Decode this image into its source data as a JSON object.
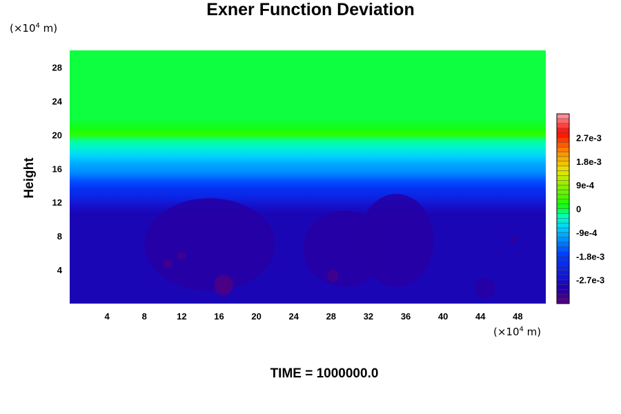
{
  "chart_data": {
    "type": "heatmap",
    "title": "Exner Function Deviation",
    "ylabel": "Height",
    "xunit_prefix": "(×10",
    "xunit_exp": "4",
    "xunit_suffix": " m)",
    "yunit_prefix": "(×10",
    "yunit_exp": "4",
    "yunit_suffix": " m)",
    "footer": "TIME = 1000000.0",
    "xlim": [
      0,
      51
    ],
    "ylim": [
      0,
      30
    ],
    "x_ticks": [
      4,
      8,
      12,
      16,
      20,
      24,
      28,
      32,
      36,
      40,
      44,
      48
    ],
    "y_ticks": [
      4,
      8,
      12,
      16,
      20,
      24,
      28
    ],
    "colorbar": {
      "range": [
        -0.0036,
        0.0036
      ],
      "tick_values": [
        0.0027,
        0.0018,
        0.0009,
        0,
        -0.0009,
        -0.0018,
        -0.0027
      ],
      "tick_labels": [
        "2.7e-3",
        "1.8e-3",
        "9e-4",
        "0",
        "-9e-4",
        "-1.8e-3",
        "-2.7e-3"
      ]
    },
    "vertical_profile": {
      "height": [
        0,
        10.6,
        11.5,
        12.5,
        13.5,
        14.5,
        15.5,
        16.5,
        17.5,
        18.5,
        19.3,
        20.0,
        20.8,
        21.8,
        23,
        30
      ],
      "value": [
        -0.0029,
        -0.0029,
        -0.0027,
        -0.0023,
        -0.002,
        -0.0016,
        -0.0012,
        -0.001,
        -0.0007,
        -0.0004,
        -0.0002,
        0.0003,
        0.0001,
        0.0,
        0.0,
        0.0
      ]
    },
    "low_regions": [
      {
        "x": 15,
        "y": 7,
        "rx": 7,
        "ry": 5.5,
        "value": -0.0031
      },
      {
        "x": 29.5,
        "y": 6.5,
        "rx": 4.5,
        "ry": 4.5,
        "value": -0.0031
      },
      {
        "x": 35,
        "y": 7.5,
        "rx": 4,
        "ry": 5.5,
        "value": -0.0031
      },
      {
        "x": 10.5,
        "y": 4.7,
        "rx": 0.5,
        "ry": 0.5,
        "value": -0.0034
      },
      {
        "x": 12,
        "y": 5.7,
        "rx": 0.5,
        "ry": 0.4,
        "value": -0.0034
      },
      {
        "x": 16.5,
        "y": 2.2,
        "rx": 1.0,
        "ry": 1.2,
        "value": -0.0035
      },
      {
        "x": 28.2,
        "y": 3.3,
        "rx": 0.6,
        "ry": 0.7,
        "value": -0.0034
      },
      {
        "x": 44.5,
        "y": 1.8,
        "rx": 1.1,
        "ry": 1.2,
        "value": -0.0031
      },
      {
        "x": 47.5,
        "y": 7.5,
        "rx": 0.4,
        "ry": 0.4,
        "value": -0.0032
      }
    ]
  }
}
